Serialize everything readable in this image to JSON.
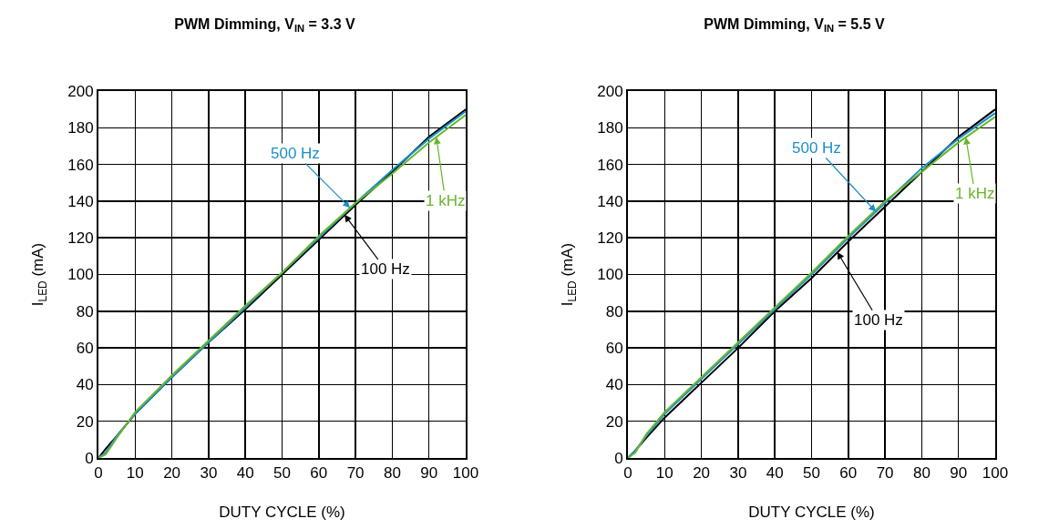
{
  "chart_data": [
    {
      "type": "line",
      "title": "PWM Dimming, V$_{IN}$ = 3.3 V",
      "xlabel": "DUTY CYCLE (%)",
      "ylabel": "I$_{LED}$ (mA)",
      "x": [
        0,
        2,
        5,
        10,
        20,
        30,
        40,
        50,
        60,
        70,
        80,
        90,
        100
      ],
      "series": [
        {
          "name": "100 Hz",
          "color": "#000000",
          "values": [
            0,
            5,
            12,
            24,
            44,
            63,
            81,
            100,
            119,
            138,
            156,
            175,
            190
          ]
        },
        {
          "name": "500 Hz",
          "color": "#1a8fc9",
          "values": [
            0,
            3,
            12,
            24,
            44,
            63,
            82,
            101,
            120,
            139,
            157,
            174,
            189
          ]
        },
        {
          "name": "1 kHz",
          "color": "#6ab42d",
          "values": [
            0,
            2,
            11,
            25,
            45,
            64,
            83,
            101,
            121,
            139,
            155,
            172,
            187
          ]
        }
      ],
      "xlim": [
        0,
        100
      ],
      "xticks": [
        0,
        10,
        20,
        30,
        40,
        50,
        60,
        70,
        80,
        90,
        100
      ],
      "ylim": [
        0,
        200
      ],
      "yticks": [
        0,
        20,
        40,
        60,
        80,
        100,
        120,
        140,
        160,
        180,
        200
      ],
      "grid": true,
      "legend": false,
      "marker": "none",
      "line_style": "solid"
    },
    {
      "type": "line",
      "title": "PWM Dimming, V$_{IN}$ = 5.5 V",
      "xlabel": "DUTY CYCLE (%)",
      "ylabel": "I$_{LED}$ (mA)",
      "x": [
        0,
        2,
        5,
        10,
        20,
        30,
        40,
        50,
        60,
        70,
        80,
        90,
        100
      ],
      "series": [
        {
          "name": "100 Hz",
          "color": "#000000",
          "values": [
            0,
            4,
            11,
            22,
            41,
            60,
            80,
            98,
            118,
            137,
            156,
            175,
            190
          ]
        },
        {
          "name": "500 Hz",
          "color": "#1a8fc9",
          "values": [
            0,
            4,
            12,
            24,
            43,
            62,
            81,
            100,
            120,
            139,
            158,
            174,
            188
          ]
        },
        {
          "name": "1 kHz",
          "color": "#6ab42d",
          "values": [
            0,
            3,
            13,
            25,
            44,
            63,
            82,
            101,
            121,
            140,
            156,
            172,
            186
          ]
        }
      ],
      "xlim": [
        0,
        100
      ],
      "xticks": [
        0,
        10,
        20,
        30,
        40,
        50,
        60,
        70,
        80,
        90,
        100
      ],
      "ylim": [
        0,
        200
      ],
      "yticks": [
        0,
        20,
        40,
        60,
        80,
        100,
        120,
        140,
        160,
        180,
        200
      ],
      "grid": true,
      "legend": false,
      "marker": "none",
      "line_style": "solid"
    }
  ]
}
